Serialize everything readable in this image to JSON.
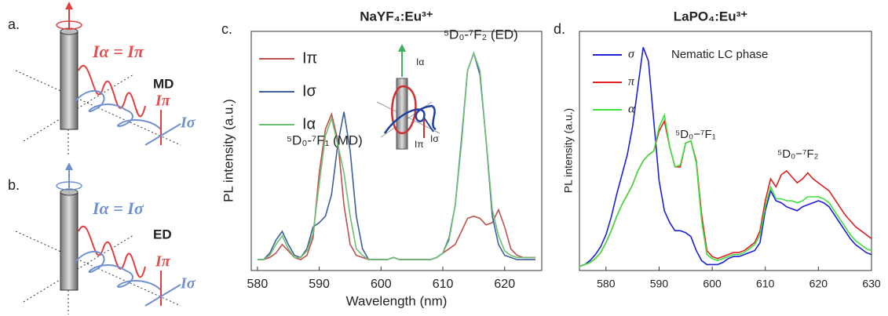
{
  "diagrams": [
    {
      "label": "a.",
      "equation": "Iα = Iπ",
      "dipole": "MD",
      "i_pi": "Iπ",
      "i_sigma": "Iσ"
    },
    {
      "label": "b.",
      "equation": "Iα = Iσ",
      "dipole": "ED",
      "i_pi": "Iπ",
      "i_sigma": "Iσ"
    }
  ],
  "chart_data": [
    {
      "type": "line",
      "panel_label": "c.",
      "title": "NaYF₄:Eu³⁺",
      "xlabel": "Wavelength (nm)",
      "ylabel": "PL intensity (a.u.)",
      "xlim": [
        579,
        626
      ],
      "xticks": [
        580,
        590,
        600,
        610,
        620
      ],
      "ylim": [
        0,
        110
      ],
      "legend": "upper left",
      "annotations": [
        "⁵D₀-⁷F₁ (MD)",
        "⁵D₀-⁷F₂ (ED)",
        "Iα",
        "Iσ",
        "Iπ"
      ],
      "x": [
        580,
        581,
        582,
        583,
        584,
        585,
        586,
        587,
        588,
        589,
        590,
        591,
        592,
        593,
        594,
        595,
        596,
        597,
        598,
        599,
        600,
        601,
        602,
        603,
        604,
        605,
        606,
        607,
        608,
        609,
        610,
        611,
        612,
        613,
        614,
        615,
        616,
        617,
        618,
        619,
        620,
        621,
        622,
        623,
        624,
        625
      ],
      "series": [
        {
          "name": "Iπ",
          "color": "#c0504d",
          "values": [
            5,
            5,
            6,
            8,
            12,
            9,
            6,
            5,
            7,
            15,
            45,
            65,
            72,
            60,
            30,
            12,
            7,
            6,
            5,
            5,
            5,
            5,
            6,
            5,
            5,
            5,
            5,
            5,
            5,
            6,
            8,
            10,
            12,
            18,
            24,
            25,
            24,
            21,
            22,
            28,
            20,
            10,
            7,
            6,
            6,
            6
          ]
        },
        {
          "name": "Iσ",
          "color": "#3f5f9a",
          "values": [
            5,
            5,
            8,
            14,
            18,
            12,
            7,
            6,
            10,
            20,
            22,
            25,
            35,
            58,
            73,
            55,
            25,
            10,
            5,
            5,
            5,
            5,
            6,
            5,
            5,
            5,
            5,
            5,
            5,
            6,
            8,
            15,
            30,
            60,
            92,
            100,
            90,
            60,
            25,
            12,
            7,
            6,
            5,
            5,
            5,
            5
          ]
        },
        {
          "name": "Iα",
          "color": "#6fbf73",
          "values": [
            5,
            5,
            7,
            12,
            16,
            10,
            6,
            6,
            9,
            17,
            40,
            62,
            70,
            58,
            45,
            25,
            10,
            7,
            5,
            5,
            5,
            5,
            6,
            5,
            5,
            5,
            5,
            5,
            5,
            6,
            8,
            14,
            30,
            58,
            92,
            100,
            92,
            60,
            28,
            16,
            9,
            7,
            6,
            6,
            6,
            6
          ]
        }
      ]
    },
    {
      "type": "line",
      "panel_label": "d.",
      "title": "LaPO₄:Eu³⁺",
      "ylabel": "PL intensity (a.u.)",
      "xlim": [
        575,
        630
      ],
      "xticks": [
        580,
        590,
        600,
        610,
        620,
        630
      ],
      "ylim": [
        0,
        120
      ],
      "legend": "upper left",
      "annotations": [
        "Nematic LC phase",
        "⁵D₀−⁷F₁",
        "⁵D₀−⁷F₂"
      ],
      "x": [
        575,
        576,
        577,
        578,
        579,
        580,
        581,
        582,
        583,
        584,
        585,
        586,
        587,
        588,
        589,
        590,
        591,
        592,
        593,
        594,
        595,
        596,
        597,
        598,
        599,
        600,
        601,
        602,
        603,
        604,
        605,
        606,
        607,
        608,
        609,
        610,
        611,
        612,
        613,
        614,
        615,
        616,
        617,
        618,
        619,
        620,
        621,
        622,
        623,
        624,
        625,
        626,
        627,
        628,
        629,
        630
      ],
      "series": [
        {
          "name": "σ",
          "color": "#1f1fd6",
          "values": [
            2,
            3,
            5,
            8,
            12,
            18,
            27,
            38,
            48,
            58,
            72,
            92,
            112,
            105,
            75,
            45,
            30,
            24,
            20,
            20,
            19,
            17,
            10,
            5,
            3,
            3,
            3,
            4,
            6,
            7,
            7,
            8,
            9,
            10,
            14,
            30,
            40,
            35,
            34,
            32,
            31,
            30,
            32,
            33,
            34,
            35,
            34,
            32,
            28,
            24,
            20,
            16,
            13,
            11,
            9,
            8
          ]
        },
        {
          "name": "π",
          "color": "#e02020",
          "values": [
            2,
            3,
            4,
            6,
            9,
            14,
            20,
            27,
            33,
            38,
            43,
            50,
            55,
            58,
            60,
            70,
            75,
            62,
            52,
            52,
            64,
            65,
            55,
            28,
            10,
            7,
            6,
            7,
            8,
            9,
            9,
            10,
            12,
            14,
            20,
            35,
            46,
            42,
            48,
            50,
            47,
            44,
            46,
            49,
            46,
            44,
            42,
            40,
            36,
            32,
            28,
            25,
            22,
            20,
            18,
            16
          ]
        },
        {
          "name": "α",
          "color": "#3ee03e",
          "values": [
            2,
            3,
            4,
            6,
            9,
            14,
            20,
            27,
            33,
            38,
            43,
            50,
            55,
            58,
            60,
            72,
            78,
            62,
            52,
            53,
            64,
            65,
            54,
            25,
            8,
            6,
            5,
            6,
            7,
            8,
            8,
            9,
            11,
            13,
            18,
            32,
            42,
            36,
            36,
            35,
            35,
            34,
            35,
            37,
            37,
            37,
            36,
            34,
            30,
            26,
            22,
            18,
            15,
            13,
            11,
            10
          ]
        }
      ]
    }
  ]
}
